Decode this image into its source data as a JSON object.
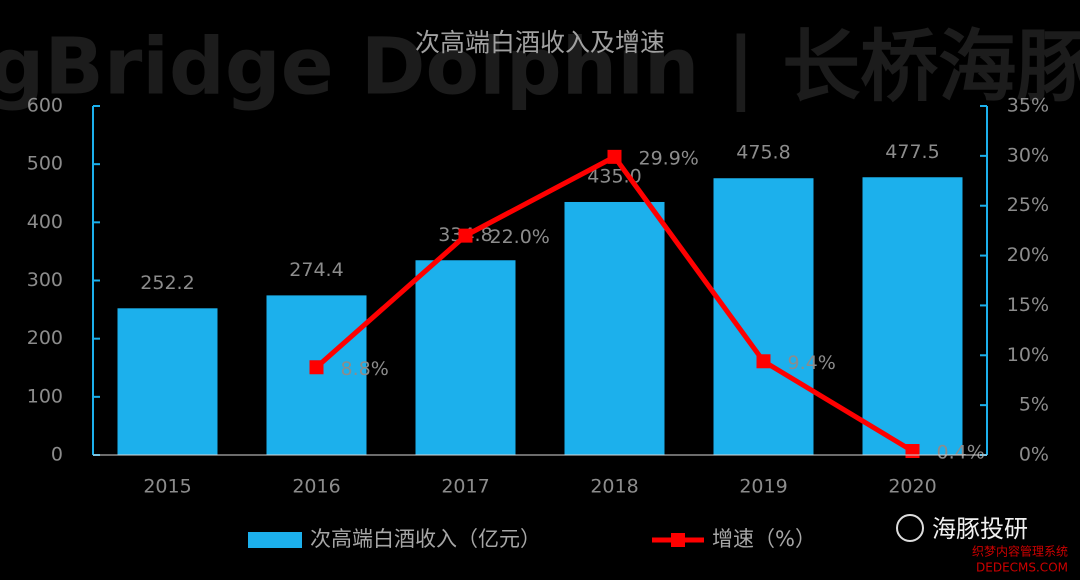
{
  "chart_data": {
    "type": "bar_line",
    "title": "次高端白酒收入及增速",
    "watermark": "LongBridge Dolphin | 长桥海豚投研",
    "logo": "海豚投研",
    "site_mark": "织梦内容管理系统",
    "site_url": "DEDECMS.COM",
    "categories": [
      "2015",
      "2016",
      "2017",
      "2018",
      "2019",
      "2020"
    ],
    "series": [
      {
        "name": "次高端白酒收入（亿元）",
        "type": "bar",
        "color": "#1cb0ec",
        "values": [
          252.2,
          274.4,
          334.8,
          435.0,
          475.8,
          477.5
        ],
        "value_labels": [
          "252.2",
          "274.4",
          "334.8",
          "435.0",
          "475.8",
          "477.5"
        ]
      },
      {
        "name": "增速（%）",
        "type": "line",
        "axis": "y2",
        "color": "#ff0000",
        "values": [
          null,
          8.8,
          22.0,
          29.9,
          9.4,
          0.4
        ],
        "value_labels": [
          null,
          "8.8%",
          "22.0%",
          "29.9%",
          "9.4%",
          "0.4%"
        ]
      }
    ],
    "ylim": [
      0,
      600
    ],
    "yticks": [
      0,
      100,
      200,
      300,
      400,
      500,
      600
    ],
    "y2lim": [
      0,
      35
    ],
    "y2ticks": [
      {
        "value": 0,
        "label": "0%"
      },
      {
        "value": 5,
        "label": "5%"
      },
      {
        "value": 10,
        "label": "10%"
      },
      {
        "value": 15,
        "label": "15%"
      },
      {
        "value": 20,
        "label": "20%"
      },
      {
        "value": 25,
        "label": "25%"
      },
      {
        "value": 30,
        "label": "30%"
      },
      {
        "value": 35,
        "label": "35%"
      }
    ],
    "legend": "bottom"
  }
}
